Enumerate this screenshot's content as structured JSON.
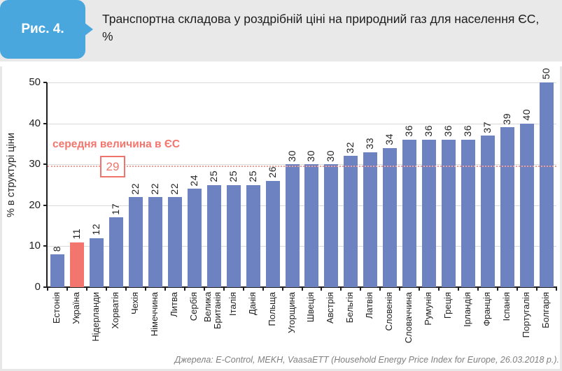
{
  "header": {
    "figure_label": "Рис. 4.",
    "title": "Транспортна складова у роздрібній ціні на природний газ для населення ЄС, %"
  },
  "chart_data": {
    "type": "bar",
    "title": "Транспортна складова у роздрібній ціні на природний газ для населення ЄС, %",
    "xlabel": "",
    "ylabel": "% в структурі ціни",
    "ylim": [
      0,
      50
    ],
    "yticks": [
      0,
      10,
      20,
      30,
      40,
      50
    ],
    "grid": true,
    "categories": [
      "Естонія",
      "Україна",
      "Нідерланди",
      "Хорватія",
      "Чехія",
      "Німеччина",
      "Литва",
      "Сербія",
      "Велика\nБританія",
      "Італія",
      "Данія",
      "Польща",
      "Угорщина",
      "Швеція",
      "Австрія",
      "Бельгія",
      "Латвія",
      "Словенія",
      "Словаччина",
      "Румунія",
      "Греція",
      "Ірландія",
      "Франція",
      "Іспанія",
      "Португалія",
      "Болгарія"
    ],
    "values": [
      8,
      11,
      12,
      17,
      22,
      22,
      22,
      24,
      25,
      25,
      25,
      26,
      30,
      30,
      30,
      32,
      33,
      34,
      36,
      36,
      36,
      36,
      37,
      39,
      40,
      50
    ],
    "bar_color": "#6d83c1",
    "highlight": {
      "category": "Україна",
      "index": 1,
      "color": "#f2766d"
    },
    "average_line": {
      "value": 29,
      "label": "29",
      "annotation": "середня величина в ЄС",
      "line_color": "#f59d96",
      "accent_color": "#ef756c"
    }
  },
  "footer": {
    "source": "Джерела: E-Control, MEKH, VaasaETT (Household Energy Price Index for Europe, 26.03.2018 р.)."
  },
  "colors": {
    "badge_bg": "#49a7de",
    "header_bg": "#e9e9e9",
    "gridline": "#d9d9d9",
    "axis": "#1f1f1f",
    "source_text": "#808080"
  }
}
